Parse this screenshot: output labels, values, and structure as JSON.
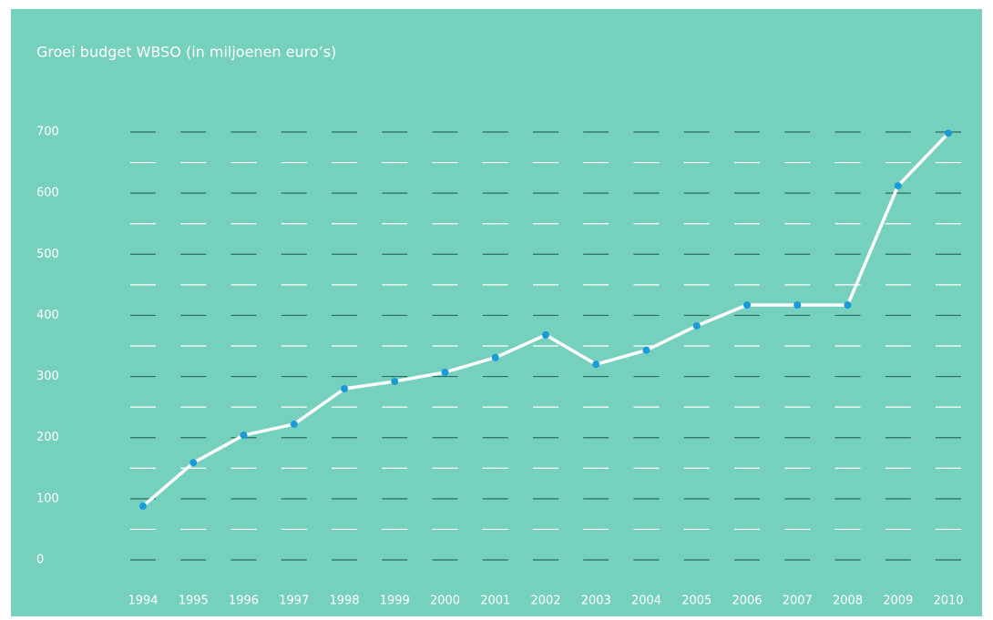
{
  "chart_data": {
    "type": "line",
    "title": "Groei budget WBSO (in miljoenen euro’s)",
    "categories": [
      "1994",
      "1995",
      "1996",
      "1997",
      "1998",
      "1999",
      "2000",
      "2001",
      "2002",
      "2003",
      "2004",
      "2005",
      "2006",
      "2007",
      "2008",
      "2009",
      "2010"
    ],
    "series": [
      {
        "name": "WBSO",
        "color": "#ffffff",
        "values": [
          88,
          159,
          204,
          222,
          280,
          292,
          307,
          331,
          368,
          320,
          343,
          383,
          417,
          417,
          417,
          612,
          698
        ]
      }
    ],
    "marker_color": "#1a9ad6",
    "ylim": [
      0,
      700
    ],
    "yticks": [
      0,
      100,
      200,
      300,
      400,
      500,
      600,
      700
    ],
    "minor_yticks": [
      50,
      150,
      250,
      350,
      450,
      550,
      650
    ],
    "grid": true
  }
}
